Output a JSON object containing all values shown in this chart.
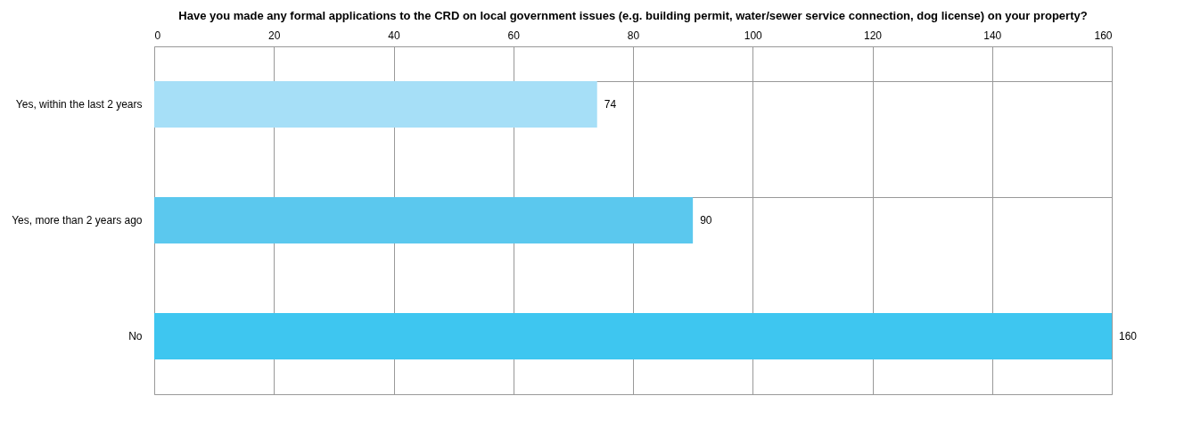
{
  "chart_data": {
    "type": "bar",
    "orientation": "horizontal",
    "title": "Have you made any formal applications to the CRD on local government issues (e.g. building permit, water/sewer service connection, dog license) on your property?",
    "categories": [
      "Yes, within the last 2 years",
      "Yes, more than 2 years ago",
      "No"
    ],
    "values": [
      74,
      90,
      160
    ],
    "colors": [
      "#a6dff7",
      "#5bc8ee",
      "#3ec6f0"
    ],
    "xlim": [
      0,
      160
    ],
    "xticks": [
      0,
      20,
      40,
      60,
      80,
      100,
      120,
      140,
      160
    ],
    "grid": true,
    "data_labels": true
  }
}
